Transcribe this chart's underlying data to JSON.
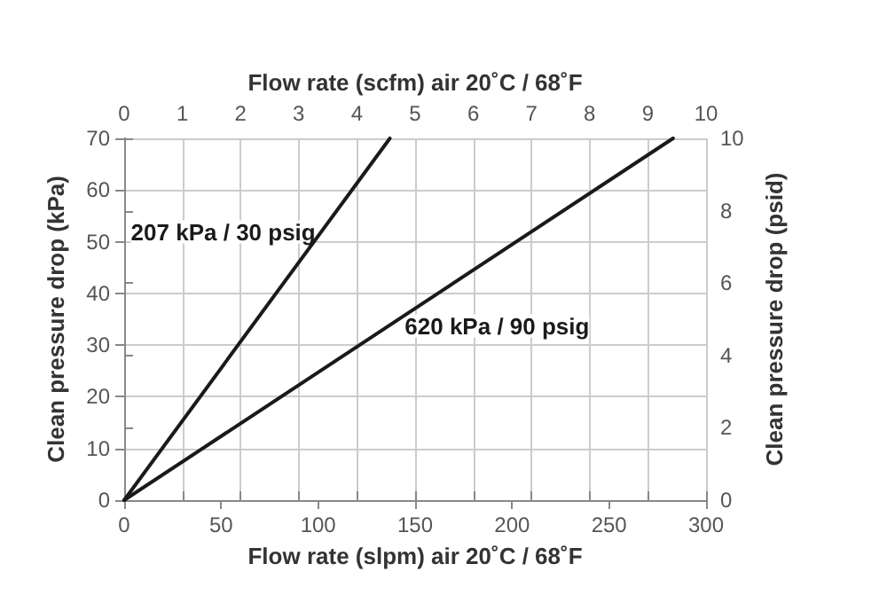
{
  "chart_data": {
    "type": "line",
    "xlabel": "Flow rate (slpm) air 20˚C / 68˚F",
    "x2label": "Flow rate (scfm) air 20˚C / 68˚F",
    "ylabel": "Clean pressure drop (kPa)",
    "y2label": "Clean pressure drop (psid)",
    "xlim": [
      0,
      300
    ],
    "xticks": [
      0,
      50,
      100,
      150,
      200,
      250,
      300
    ],
    "x2lim": [
      0,
      10
    ],
    "x2ticks": [
      0,
      1,
      2,
      3,
      4,
      5,
      6,
      7,
      8,
      9,
      10
    ],
    "ylim": [
      0,
      70
    ],
    "yticks": [
      0,
      10,
      20,
      30,
      40,
      50,
      60,
      70
    ],
    "y2lim": [
      0,
      10
    ],
    "y2ticks": [
      0,
      2,
      4,
      6,
      8,
      10
    ],
    "series": [
      {
        "name": "207 kPa / 30 psig",
        "color": "#1a1a1a",
        "x": [
          0,
          137
        ],
        "values": [
          0,
          70
        ]
      },
      {
        "name": "620 kPa / 90 psig",
        "color": "#1a1a1a",
        "x": [
          0,
          283
        ],
        "values": [
          0,
          70
        ]
      }
    ],
    "grid": true,
    "marker": "none",
    "line_style": "solid"
  }
}
